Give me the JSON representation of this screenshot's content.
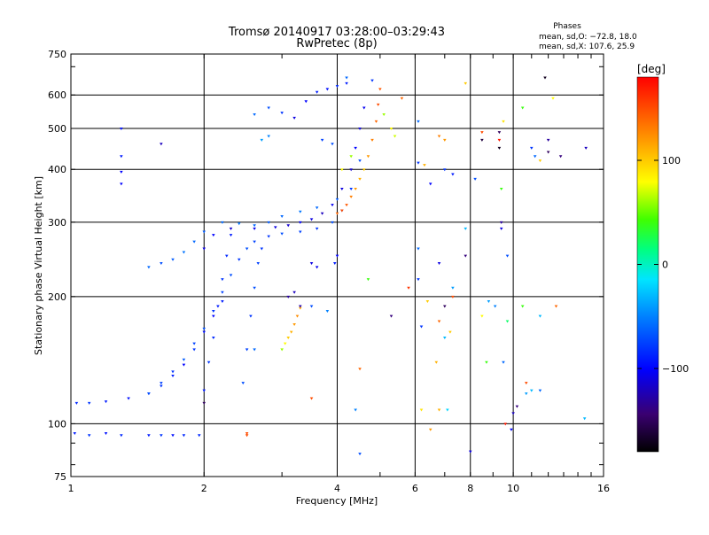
{
  "chart_data": {
    "type": "scatter",
    "title": "Tromsø 20140917 03:28:00–03:29:43",
    "subtitle": "RwPretec (8p)",
    "info": {
      "heading": "Phases",
      "line1": "mean, sd,O: −72.8, 18.0",
      "line2": "mean, sd,X: 107.6, 25.9"
    },
    "xlabel": "Frequency [MHz]",
    "ylabel": "Stationary phase Virtual Height [km]",
    "x_scale": "log",
    "y_scale": "log",
    "xlim": [
      1,
      16
    ],
    "ylim": [
      75,
      750
    ],
    "x_ticks": [
      1,
      2,
      4,
      6,
      8,
      10,
      16
    ],
    "x_tick_labels": [
      "1",
      "2",
      "4",
      "6",
      "8",
      "10",
      "16"
    ],
    "y_ticks": [
      75,
      100,
      200,
      300,
      400,
      500,
      600,
      750
    ],
    "y_tick_labels": [
      "75",
      "100",
      "200",
      "300",
      "400",
      "500",
      "600",
      "750"
    ],
    "grid": true,
    "colorbar": {
      "label": "[deg]",
      "range": [
        -180,
        180
      ],
      "ticks": [
        100,
        0,
        -100
      ],
      "tick_labels": [
        "100",
        "0",
        "−100"
      ]
    },
    "series": [
      {
        "points": [
          [
            1.02,
            95,
            -90
          ],
          [
            1.1,
            94,
            -80
          ],
          [
            1.2,
            95,
            -95
          ],
          [
            1.3,
            94,
            -85
          ],
          [
            1.5,
            94,
            -90
          ],
          [
            1.6,
            94,
            -80
          ],
          [
            1.7,
            94,
            -95
          ],
          [
            1.8,
            94,
            -85
          ],
          [
            1.95,
            94,
            -85
          ],
          [
            2.5,
            94,
            150
          ],
          [
            1.03,
            112,
            -85
          ],
          [
            1.1,
            112,
            -80
          ],
          [
            1.2,
            113,
            -90
          ],
          [
            1.35,
            115,
            -95
          ],
          [
            1.5,
            118,
            -85
          ],
          [
            1.6,
            123,
            -80
          ],
          [
            1.7,
            130,
            -90
          ],
          [
            1.8,
            138,
            -100
          ],
          [
            1.9,
            150,
            -80
          ],
          [
            2.0,
            165,
            -95
          ],
          [
            2.1,
            180,
            -100
          ],
          [
            2.2,
            195,
            -90
          ]
        ]
      },
      {
        "points": [
          [
            1.5,
            118,
            -70
          ],
          [
            1.6,
            125,
            -75
          ],
          [
            1.7,
            133,
            -80
          ],
          [
            1.8,
            142,
            -65
          ],
          [
            1.9,
            155,
            -75
          ],
          [
            2.0,
            168,
            -70
          ],
          [
            2.1,
            185,
            -80
          ],
          [
            2.2,
            205,
            -75
          ],
          [
            2.3,
            225,
            -70
          ],
          [
            2.4,
            245,
            -80
          ],
          [
            2.5,
            260,
            -70
          ],
          [
            2.6,
            270,
            -75
          ],
          [
            2.8,
            278,
            -80
          ],
          [
            3.0,
            282,
            -70
          ],
          [
            3.3,
            285,
            -75
          ],
          [
            3.6,
            290,
            -80
          ],
          [
            3.9,
            300,
            -70
          ],
          [
            4.1,
            320,
            -75
          ],
          [
            4.3,
            360,
            -80
          ],
          [
            4.5,
            420,
            -70
          ]
        ]
      },
      {
        "points": [
          [
            1.5,
            235,
            -60
          ],
          [
            1.6,
            240,
            -70
          ],
          [
            1.7,
            245,
            -65
          ],
          [
            1.8,
            255,
            -55
          ],
          [
            1.9,
            270,
            -60
          ],
          [
            2.0,
            285,
            -65
          ],
          [
            2.2,
            300,
            -60
          ],
          [
            2.4,
            298,
            -55
          ],
          [
            2.6,
            295,
            -60
          ],
          [
            2.8,
            300,
            -65
          ],
          [
            3.0,
            310,
            -60
          ],
          [
            3.3,
            318,
            -55
          ],
          [
            3.6,
            325,
            -60
          ],
          [
            4.0,
            340,
            -65
          ]
        ]
      },
      {
        "points": [
          [
            2.0,
            260,
            -110
          ],
          [
            2.1,
            280,
            -100
          ],
          [
            2.3,
            290,
            -115
          ],
          [
            2.6,
            290,
            -105
          ],
          [
            2.9,
            292,
            -110
          ],
          [
            3.1,
            295,
            -115
          ],
          [
            3.3,
            300,
            -100
          ],
          [
            3.5,
            305,
            -110
          ],
          [
            3.7,
            315,
            -120
          ],
          [
            3.9,
            330,
            -105
          ],
          [
            4.1,
            360,
            -110
          ],
          [
            4.3,
            400,
            -115
          ],
          [
            4.4,
            450,
            -100
          ],
          [
            4.5,
            500,
            -110
          ],
          [
            4.6,
            560,
            -105
          ]
        ]
      },
      {
        "points": [
          [
            2.0,
            120,
            -90
          ],
          [
            2.05,
            140,
            -80
          ],
          [
            2.1,
            160,
            -85
          ],
          [
            2.15,
            190,
            -90
          ],
          [
            2.2,
            220,
            -80
          ],
          [
            2.25,
            250,
            -85
          ],
          [
            2.3,
            280,
            -90
          ],
          [
            2.45,
            125,
            -70
          ],
          [
            2.5,
            150,
            -75
          ],
          [
            2.55,
            180,
            -80
          ],
          [
            2.6,
            210,
            -70
          ],
          [
            2.65,
            240,
            -75
          ],
          [
            2.7,
            260,
            -80
          ]
        ]
      },
      {
        "points": [
          [
            2.6,
            540,
            -60
          ],
          [
            2.8,
            560,
            -70
          ],
          [
            3.0,
            545,
            -80
          ],
          [
            3.2,
            530,
            -110
          ],
          [
            3.4,
            580,
            -100
          ],
          [
            3.6,
            610,
            -90
          ],
          [
            3.8,
            620,
            -95
          ],
          [
            4.0,
            630,
            -85
          ],
          [
            4.2,
            640,
            -90
          ],
          [
            2.7,
            470,
            -40
          ],
          [
            2.8,
            480,
            -50
          ],
          [
            3.7,
            470,
            -75
          ],
          [
            3.9,
            460,
            -70
          ]
        ]
      },
      {
        "points": [
          [
            3.0,
            150,
            60
          ],
          [
            3.05,
            155,
            80
          ],
          [
            3.1,
            160,
            100
          ],
          [
            3.15,
            165,
            110
          ],
          [
            3.2,
            172,
            120
          ],
          [
            3.25,
            180,
            125
          ],
          [
            3.3,
            188,
            115
          ],
          [
            3.1,
            200,
            -130
          ],
          [
            3.2,
            205,
            -120
          ],
          [
            3.3,
            190,
            -125
          ],
          [
            3.5,
            240,
            -110
          ],
          [
            3.6,
            235,
            -105
          ],
          [
            3.95,
            240,
            -90
          ],
          [
            4.0,
            250,
            -100
          ]
        ]
      },
      {
        "points": [
          [
            4.0,
            315,
            140
          ],
          [
            4.1,
            320,
            150
          ],
          [
            4.2,
            330,
            145
          ],
          [
            4.3,
            345,
            130
          ],
          [
            4.4,
            360,
            120
          ],
          [
            4.5,
            380,
            110
          ],
          [
            4.6,
            400,
            100
          ],
          [
            4.7,
            430,
            120
          ],
          [
            4.8,
            470,
            130
          ],
          [
            4.9,
            520,
            140
          ],
          [
            4.95,
            570,
            150
          ],
          [
            5.0,
            620,
            145
          ],
          [
            4.1,
            400,
            80
          ],
          [
            4.3,
            430,
            60
          ],
          [
            5.1,
            540,
            60
          ],
          [
            5.3,
            500,
            80
          ],
          [
            5.4,
            480,
            70
          ],
          [
            4.7,
            220,
            40
          ]
        ]
      },
      {
        "points": [
          [
            4.2,
            660,
            -60
          ],
          [
            4.8,
            650,
            -80
          ],
          [
            5.6,
            590,
            140
          ],
          [
            7.8,
            640,
            100
          ],
          [
            6.1,
            520,
            -60
          ],
          [
            6.8,
            480,
            130
          ],
          [
            7.0,
            470,
            120
          ],
          [
            8.5,
            490,
            150
          ],
          [
            8.5,
            470,
            -160
          ],
          [
            9.3,
            490,
            -150
          ],
          [
            9.3,
            470,
            170
          ],
          [
            9.3,
            450,
            -170
          ],
          [
            9.5,
            520,
            90
          ],
          [
            10.5,
            560,
            40
          ],
          [
            11.8,
            660,
            -170
          ],
          [
            12.3,
            590,
            80
          ],
          [
            12.0,
            470,
            -130
          ],
          [
            12.0,
            440,
            -150
          ],
          [
            12.8,
            430,
            -140
          ],
          [
            11.0,
            450,
            -80
          ],
          [
            11.2,
            430,
            -60
          ],
          [
            11.5,
            420,
            100
          ],
          [
            14.6,
            450,
            -120
          ],
          [
            6.1,
            415,
            -80
          ],
          [
            7.0,
            400,
            -80
          ],
          [
            7.3,
            390,
            -90
          ],
          [
            8.2,
            380,
            -70
          ],
          [
            6.3,
            410,
            110
          ],
          [
            6.5,
            370,
            -100
          ],
          [
            9.4,
            360,
            40
          ],
          [
            9.4,
            300,
            -130
          ],
          [
            9.4,
            290,
            -110
          ],
          [
            7.8,
            290,
            -30
          ],
          [
            7.8,
            250,
            -140
          ],
          [
            6.1,
            260,
            -60
          ],
          [
            6.8,
            240,
            -110
          ],
          [
            9.7,
            250,
            -70
          ],
          [
            5.8,
            210,
            160
          ],
          [
            6.1,
            220,
            -80
          ],
          [
            7.3,
            210,
            -40
          ],
          [
            7.3,
            200,
            150
          ],
          [
            6.4,
            195,
            100
          ],
          [
            7.0,
            190,
            -150
          ],
          [
            8.8,
            195,
            -40
          ],
          [
            9.1,
            190,
            -50
          ],
          [
            10.5,
            190,
            40
          ],
          [
            12.5,
            190,
            140
          ],
          [
            5.3,
            180,
            -140
          ],
          [
            6.2,
            170,
            -80
          ],
          [
            6.8,
            175,
            140
          ],
          [
            7.0,
            160,
            -30
          ],
          [
            7.2,
            165,
            100
          ],
          [
            8.5,
            180,
            80
          ],
          [
            9.7,
            175,
            20
          ],
          [
            11.5,
            180,
            -30
          ],
          [
            6.7,
            140,
            110
          ],
          [
            8.7,
            140,
            40
          ],
          [
            9.5,
            140,
            -60
          ],
          [
            4.5,
            135,
            140
          ],
          [
            10.7,
            125,
            150
          ],
          [
            11.0,
            120,
            -30
          ],
          [
            10.7,
            118,
            -40
          ],
          [
            11.5,
            120,
            -60
          ],
          [
            6.2,
            108,
            90
          ],
          [
            6.8,
            108,
            110
          ],
          [
            7.1,
            108,
            -20
          ],
          [
            10.0,
            106,
            -120
          ],
          [
            10.2,
            110,
            -140
          ],
          [
            14.5,
            103,
            -30
          ],
          [
            9.6,
            100,
            170
          ],
          [
            9.9,
            97,
            -100
          ],
          [
            6.5,
            97,
            120
          ],
          [
            4.5,
            85,
            -70
          ],
          [
            8.0,
            86,
            -110
          ],
          [
            2.5,
            95,
            150
          ],
          [
            2.0,
            112,
            -150
          ],
          [
            3.5,
            115,
            150
          ],
          [
            4.4,
            108,
            -50
          ],
          [
            1.3,
            395,
            -100
          ],
          [
            1.3,
            370,
            -100
          ],
          [
            1.3,
            430,
            -90
          ],
          [
            1.3,
            500,
            -95
          ],
          [
            1.6,
            460,
            -120
          ],
          [
            2.6,
            150,
            -60
          ],
          [
            3.5,
            190,
            -70
          ],
          [
            3.8,
            185,
            -50
          ]
        ]
      }
    ]
  }
}
